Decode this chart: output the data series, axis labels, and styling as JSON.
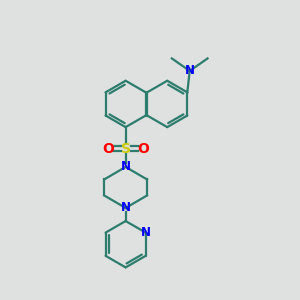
{
  "bg_color": "#dfe0e0",
  "bond_color": "#2d7d6e",
  "n_color": "#0000ff",
  "o_color": "#ff0000",
  "s_color": "#cccc00",
  "linewidth": 1.6,
  "figsize": [
    3.0,
    3.0
  ],
  "dpi": 100,
  "xlim": [
    0,
    10
  ],
  "ylim": [
    0,
    10
  ]
}
